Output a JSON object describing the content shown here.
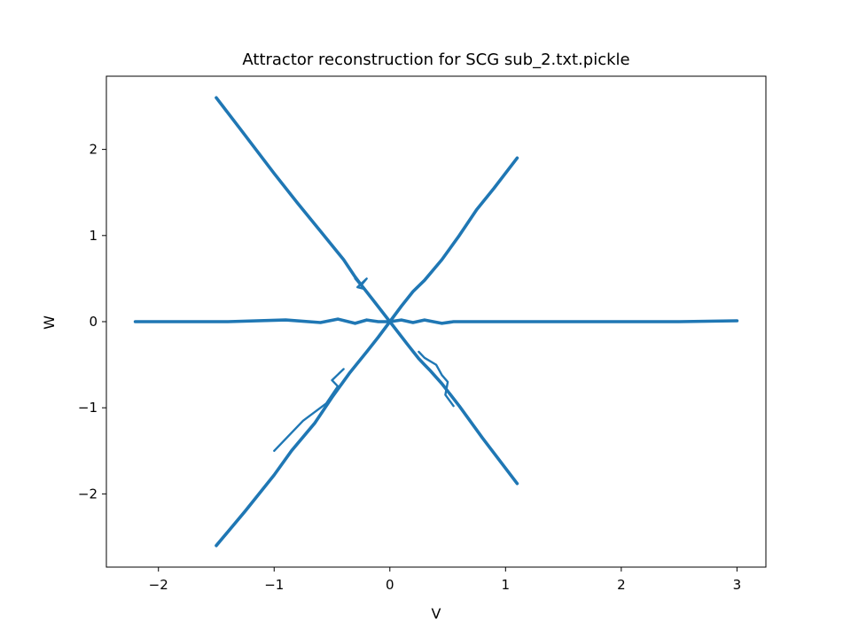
{
  "chart_data": {
    "type": "line",
    "title": "Attractor reconstruction for SCG sub_2.txt.pickle",
    "xlabel": "V",
    "ylabel": "W",
    "xlim": [
      -2.45,
      3.25
    ],
    "ylim": [
      -2.85,
      2.85
    ],
    "xticks": [
      -2,
      -1,
      0,
      1,
      2,
      3
    ],
    "yticks": [
      -2,
      -1,
      0,
      1,
      2
    ],
    "xtick_labels": [
      "−2",
      "−1",
      "0",
      "1",
      "2",
      "3"
    ],
    "ytick_labels": [
      "−2",
      "−1",
      "0",
      "1",
      "2"
    ],
    "grid": false,
    "legend": "none",
    "color": "#1f77b4",
    "series": [
      {
        "x": [
          -2.2,
          -1.4,
          -0.9,
          -0.6,
          -0.45,
          -0.3,
          -0.2,
          -0.1,
          0.0,
          0.1,
          0.2,
          0.3,
          0.45,
          0.55,
          0.9,
          1.4,
          2.0,
          2.5,
          3.0
        ],
        "y": [
          0.0,
          0.0,
          0.02,
          -0.01,
          0.03,
          -0.02,
          0.02,
          0.0,
          0.0,
          0.02,
          -0.01,
          0.02,
          -0.02,
          0.0,
          0.0,
          0.0,
          0.0,
          0.0,
          0.01
        ]
      },
      {
        "x": [
          -1.5,
          -1.3,
          -1.0,
          -0.8,
          -0.6,
          -0.4,
          -0.3,
          -0.25,
          -0.15,
          0.0,
          0.15,
          0.25,
          0.3,
          0.35,
          0.45,
          0.6,
          0.8,
          1.1
        ],
        "y": [
          2.6,
          2.25,
          1.72,
          1.38,
          1.05,
          0.72,
          0.52,
          0.43,
          0.26,
          0.0,
          -0.26,
          -0.43,
          -0.5,
          -0.57,
          -0.72,
          -0.98,
          -1.35,
          -1.88
        ]
      },
      {
        "x": [
          -1.5,
          -1.25,
          -1.0,
          -0.85,
          -0.65,
          -0.5,
          -0.35,
          -0.2,
          -0.1,
          0.0,
          0.1,
          0.2,
          0.3,
          0.45,
          0.6,
          0.75,
          0.9,
          1.1
        ],
        "y": [
          -2.6,
          -2.2,
          -1.78,
          -1.5,
          -1.18,
          -0.88,
          -0.6,
          -0.35,
          -0.18,
          0.0,
          0.18,
          0.35,
          0.48,
          0.72,
          1.0,
          1.3,
          1.55,
          1.9
        ]
      },
      {
        "x": [
          -1.0,
          -0.75,
          -0.55,
          -0.45,
          -0.5,
          -0.4
        ],
        "y": [
          -1.5,
          -1.15,
          -0.95,
          -0.75,
          -0.68,
          -0.55
        ]
      },
      {
        "x": [
          0.25,
          0.3,
          0.4,
          0.45,
          0.5,
          0.48,
          0.55
        ],
        "y": [
          -0.35,
          -0.42,
          -0.5,
          -0.62,
          -0.7,
          -0.85,
          -0.98
        ]
      },
      {
        "x": [
          -0.3,
          -0.25,
          -0.2,
          -0.28,
          -0.22
        ],
        "y": [
          0.5,
          0.42,
          0.5,
          0.4,
          0.38
        ]
      }
    ]
  }
}
